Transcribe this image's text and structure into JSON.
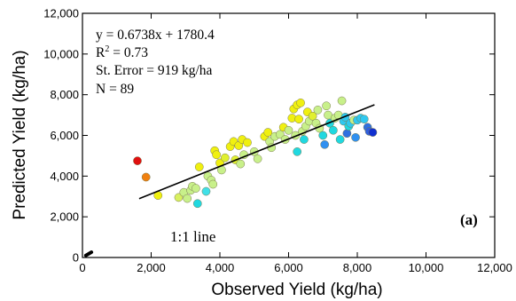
{
  "chart_data": {
    "type": "scatter",
    "title": "",
    "xlabel": "Observed Yield (kg/ha)",
    "ylabel": "Predicted Yield (kg/ha)",
    "xlim": [
      0,
      12000
    ],
    "ylim": [
      0,
      12000
    ],
    "xticks": [
      0,
      2000,
      4000,
      6000,
      8000,
      10000,
      12000
    ],
    "yticks": [
      0,
      2000,
      4000,
      6000,
      8000,
      10000,
      12000
    ],
    "xtick_labels": [
      "0",
      "2,000",
      "4,000",
      "6,000",
      "8,000",
      "10,000",
      "12,000"
    ],
    "ytick_labels": [
      "0",
      "2,000",
      "4,000",
      "6,000",
      "8,000",
      "10,000",
      "12,000"
    ],
    "grid": false,
    "stats": {
      "equation": "y = 0.6738x + 1780.4",
      "r2_prefix": "R",
      "r2_sup": "2",
      "r2_suffix": " = 0.73",
      "std_error": "St. Error = 919 kg/ha",
      "n": "N = 89"
    },
    "regression": {
      "slope": 0.6738,
      "intercept": 1780.4,
      "x_range": [
        1650,
        8500
      ]
    },
    "one_to_one": {
      "label": "1:1 line",
      "x_range": [
        100,
        260
      ]
    },
    "panel_label": "(a)",
    "points": [
      {
        "x": 1600,
        "y": 4750,
        "color": "#e01010"
      },
      {
        "x": 1850,
        "y": 3950,
        "color": "#f08010"
      },
      {
        "x": 2200,
        "y": 3050,
        "color": "#f0f010"
      },
      {
        "x": 2800,
        "y": 2950,
        "color": "#d8f060"
      },
      {
        "x": 2950,
        "y": 3200,
        "color": "#c8f08a"
      },
      {
        "x": 3050,
        "y": 2900,
        "color": "#c8f08a"
      },
      {
        "x": 3150,
        "y": 3300,
        "color": "#c8f08a"
      },
      {
        "x": 3200,
        "y": 3500,
        "color": "#c8f08a"
      },
      {
        "x": 3300,
        "y": 3400,
        "color": "#c8f08a"
      },
      {
        "x": 3350,
        "y": 2650,
        "color": "#20d8e0"
      },
      {
        "x": 3400,
        "y": 4450,
        "color": "#f0f010"
      },
      {
        "x": 3600,
        "y": 3250,
        "color": "#40e0e8"
      },
      {
        "x": 3650,
        "y": 4000,
        "color": "#c8f08a"
      },
      {
        "x": 3750,
        "y": 3800,
        "color": "#c8f08a"
      },
      {
        "x": 3800,
        "y": 3600,
        "color": "#c8f08a"
      },
      {
        "x": 3850,
        "y": 5250,
        "color": "#f0f010"
      },
      {
        "x": 3900,
        "y": 5050,
        "color": "#f0f010"
      },
      {
        "x": 4000,
        "y": 4650,
        "color": "#f0f010"
      },
      {
        "x": 4050,
        "y": 4300,
        "color": "#c8f08a"
      },
      {
        "x": 4150,
        "y": 4900,
        "color": "#e0f030"
      },
      {
        "x": 4300,
        "y": 5450,
        "color": "#f0f010"
      },
      {
        "x": 4400,
        "y": 5700,
        "color": "#f0f010"
      },
      {
        "x": 4450,
        "y": 4800,
        "color": "#e0f030"
      },
      {
        "x": 4550,
        "y": 5500,
        "color": "#f0f010"
      },
      {
        "x": 4600,
        "y": 4600,
        "color": "#c8f08a"
      },
      {
        "x": 4650,
        "y": 5800,
        "color": "#f0f010"
      },
      {
        "x": 4700,
        "y": 5050,
        "color": "#c8f08a"
      },
      {
        "x": 4800,
        "y": 5650,
        "color": "#f0f010"
      },
      {
        "x": 5000,
        "y": 5200,
        "color": "#c8f08a"
      },
      {
        "x": 5100,
        "y": 4850,
        "color": "#c8f08a"
      },
      {
        "x": 5300,
        "y": 5950,
        "color": "#f0f010"
      },
      {
        "x": 5400,
        "y": 6150,
        "color": "#f0f010"
      },
      {
        "x": 5450,
        "y": 5700,
        "color": "#c8f08a"
      },
      {
        "x": 5500,
        "y": 5400,
        "color": "#c8f08a"
      },
      {
        "x": 5600,
        "y": 5950,
        "color": "#c8f08a"
      },
      {
        "x": 5750,
        "y": 6050,
        "color": "#c8f08a"
      },
      {
        "x": 5850,
        "y": 6400,
        "color": "#f0f010"
      },
      {
        "x": 5900,
        "y": 5800,
        "color": "#c8f08a"
      },
      {
        "x": 6000,
        "y": 6250,
        "color": "#c8f08a"
      },
      {
        "x": 6100,
        "y": 6850,
        "color": "#f0f010"
      },
      {
        "x": 6150,
        "y": 7300,
        "color": "#f0f010"
      },
      {
        "x": 6200,
        "y": 6000,
        "color": "#c8f08a"
      },
      {
        "x": 6250,
        "y": 5200,
        "color": "#20d8e0"
      },
      {
        "x": 6250,
        "y": 7500,
        "color": "#f0f010"
      },
      {
        "x": 6300,
        "y": 6800,
        "color": "#f0f010"
      },
      {
        "x": 6350,
        "y": 7600,
        "color": "#f0f010"
      },
      {
        "x": 6400,
        "y": 6200,
        "color": "#c8f08a"
      },
      {
        "x": 6450,
        "y": 5800,
        "color": "#20d8e0"
      },
      {
        "x": 6500,
        "y": 6450,
        "color": "#c8f08a"
      },
      {
        "x": 6550,
        "y": 7150,
        "color": "#f0f010"
      },
      {
        "x": 6600,
        "y": 6700,
        "color": "#c8f08a"
      },
      {
        "x": 6700,
        "y": 6950,
        "color": "#e0f030"
      },
      {
        "x": 6800,
        "y": 6600,
        "color": "#c8f08a"
      },
      {
        "x": 6850,
        "y": 7250,
        "color": "#c8f08a"
      },
      {
        "x": 6900,
        "y": 6350,
        "color": "#c8f08a"
      },
      {
        "x": 7000,
        "y": 6000,
        "color": "#20d8e0"
      },
      {
        "x": 7050,
        "y": 5550,
        "color": "#3090f0"
      },
      {
        "x": 7100,
        "y": 7450,
        "color": "#c8f08a"
      },
      {
        "x": 7150,
        "y": 7000,
        "color": "#c8f08a"
      },
      {
        "x": 7200,
        "y": 6600,
        "color": "#20d8e0"
      },
      {
        "x": 7300,
        "y": 6250,
        "color": "#20d8e0"
      },
      {
        "x": 7350,
        "y": 6850,
        "color": "#c8f08a"
      },
      {
        "x": 7450,
        "y": 7000,
        "color": "#c8f08a"
      },
      {
        "x": 7500,
        "y": 5800,
        "color": "#20d8e0"
      },
      {
        "x": 7550,
        "y": 7700,
        "color": "#c8f08a"
      },
      {
        "x": 7600,
        "y": 6700,
        "color": "#30c8f0"
      },
      {
        "x": 7650,
        "y": 6900,
        "color": "#30c8f0"
      },
      {
        "x": 7700,
        "y": 6100,
        "color": "#3070e0"
      },
      {
        "x": 7750,
        "y": 6450,
        "color": "#20d8e0"
      },
      {
        "x": 7800,
        "y": 6600,
        "color": "#30c8f0"
      },
      {
        "x": 7900,
        "y": 6750,
        "color": "#c8f08a"
      },
      {
        "x": 7950,
        "y": 5900,
        "color": "#3090f0"
      },
      {
        "x": 8000,
        "y": 6750,
        "color": "#30c8f0"
      },
      {
        "x": 8100,
        "y": 6850,
        "color": "#30c8f0"
      },
      {
        "x": 8200,
        "y": 6800,
        "color": "#30c8f0"
      },
      {
        "x": 8300,
        "y": 6400,
        "color": "#3070e0"
      },
      {
        "x": 8350,
        "y": 6200,
        "color": "#3060e0"
      },
      {
        "x": 8450,
        "y": 6150,
        "color": "#1030d0"
      }
    ]
  }
}
